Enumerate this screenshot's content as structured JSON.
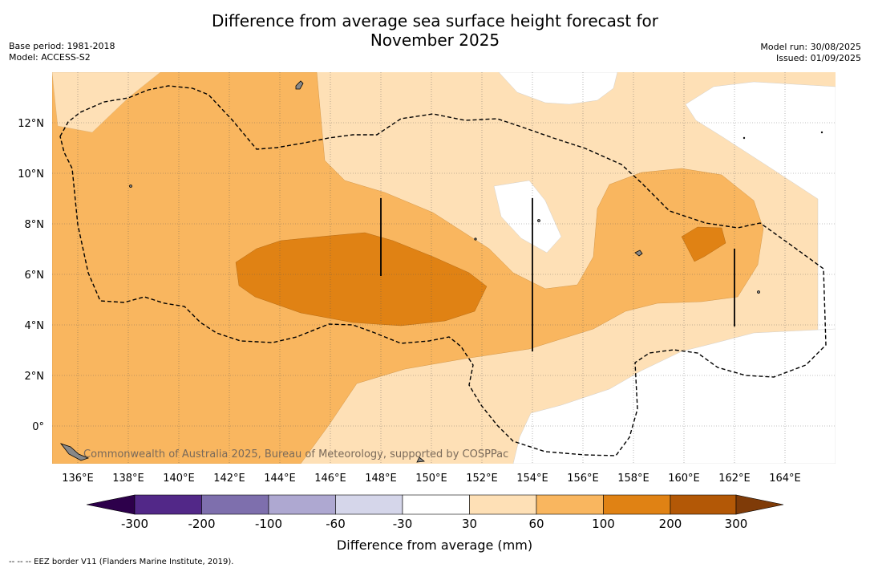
{
  "title_line1": "Difference from average sea surface height forecast for",
  "title_line2": "November 2025",
  "base_period": "Base period: 1981-2018",
  "model": "Model: ACCESS-S2",
  "model_run": "Model run: 30/08/2025",
  "issued": "Issued: 01/09/2025",
  "copyright": "Commonwealth of Australia 2025, Bureau of Meteorology, supported by COSPPac",
  "footer": "--  --  -- EEZ border V11 (Flanders Marine Institute, 2019).",
  "colorbar_title": "Difference from average (mm)",
  "colorbar": {
    "labels": [
      "-300",
      "-200",
      "-100",
      "-60",
      "-30",
      "30",
      "60",
      "100",
      "200",
      "300"
    ],
    "colors": [
      "#522888",
      "#7e6fad",
      "#aea8d1",
      "#d5d6ea",
      "#ffffff",
      "#fee0b6",
      "#f9b65f",
      "#e08214",
      "#b35806"
    ],
    "under_color": "#2d004b",
    "over_color": "#7f3b08"
  },
  "chart_data": {
    "type": "heatmap",
    "x_ticks": [
      "136°E",
      "138°E",
      "140°E",
      "142°E",
      "144°E",
      "146°E",
      "148°E",
      "150°E",
      "152°E",
      "154°E",
      "156°E",
      "158°E",
      "160°E",
      "162°E",
      "164°E"
    ],
    "y_ticks": [
      "12°N",
      "10°N",
      "8°N",
      "6°N",
      "4°N",
      "2°N",
      "0°"
    ],
    "xlim": [
      135,
      166
    ],
    "ylim": [
      -1.5,
      14
    ],
    "grid": true
  }
}
